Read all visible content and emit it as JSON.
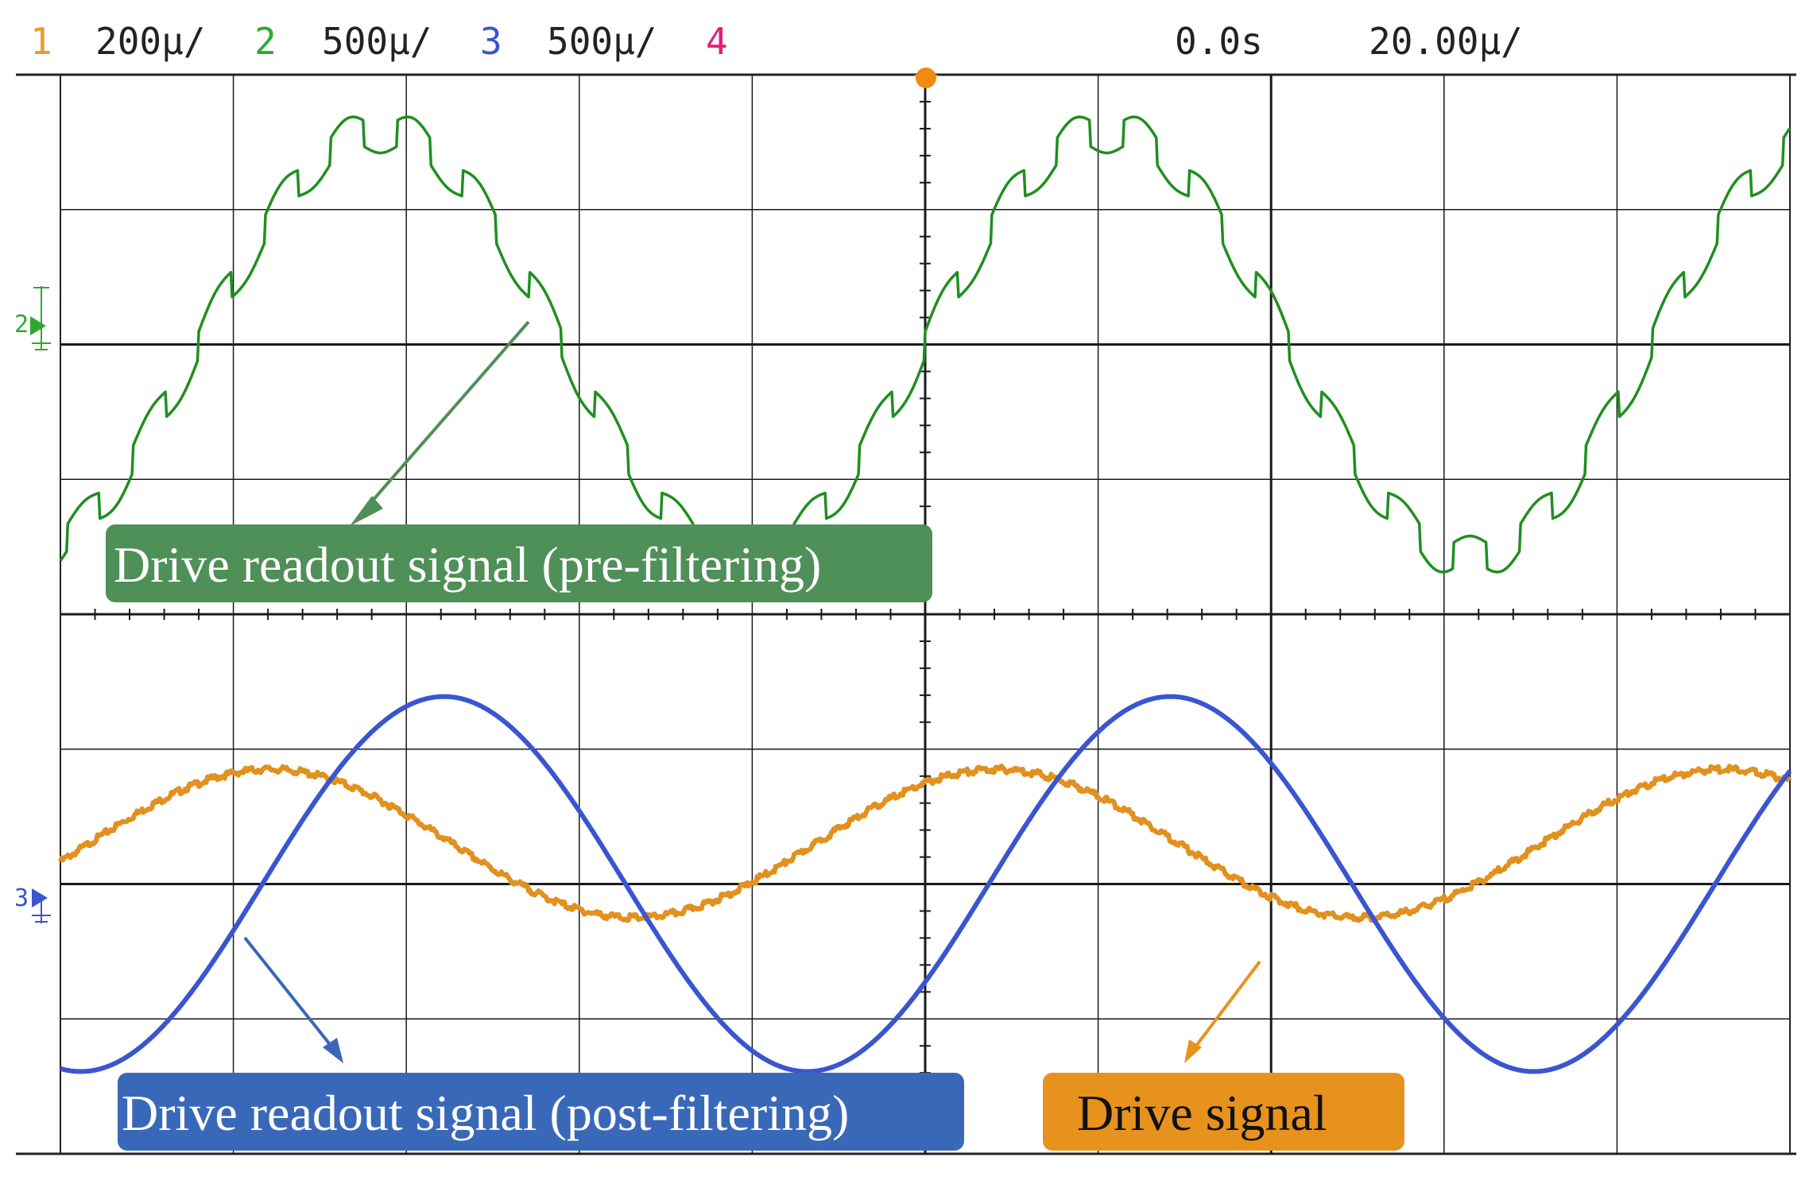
{
  "header": {
    "channels": [
      {
        "num": "1",
        "scale": "200μ/",
        "color": "#e89a2c"
      },
      {
        "num": "2",
        "scale": "500μ/",
        "color": "#2fa82f"
      },
      {
        "num": "3",
        "scale": "500μ/",
        "color": "#3a55d0"
      },
      {
        "num": "4",
        "scale": "",
        "color": "#e0207a"
      }
    ],
    "time_offset": "0.0s",
    "time_scale": "20.00µ/"
  },
  "markers": {
    "ch2": "2",
    "ch3": "3"
  },
  "labels": {
    "pre": "Drive readout signal (pre-filtering)",
    "post": "Drive readout signal (post-filtering)",
    "drive": "Drive signal"
  },
  "colors": {
    "ch1": "#e2901e",
    "ch2": "#1f8f1f",
    "ch3": "#3a55d0",
    "pre_box": "#4f8f58",
    "post_box": "#3a68b8",
    "drive_box": "#e8921e"
  },
  "chart_data": {
    "type": "line",
    "x_unit": "divisions",
    "xlim": [
      -5,
      5
    ],
    "grid": true,
    "series": [
      {
        "channel": "2",
        "shape": "sine with ripple",
        "amplitude_div": 1.58,
        "offset_div": 2.0,
        "period_div": 4.2,
        "ripple_div": 0.16,
        "ripple_per_period": 11
      },
      {
        "channel": "3",
        "shape": "sine",
        "amplitude_div": 1.39,
        "offset_div": -2.0,
        "period_div": 4.2
      },
      {
        "channel": "1",
        "shape": "sine",
        "amplitude_div": 0.55,
        "offset_div": -1.7,
        "period_div": 4.2
      }
    ]
  }
}
